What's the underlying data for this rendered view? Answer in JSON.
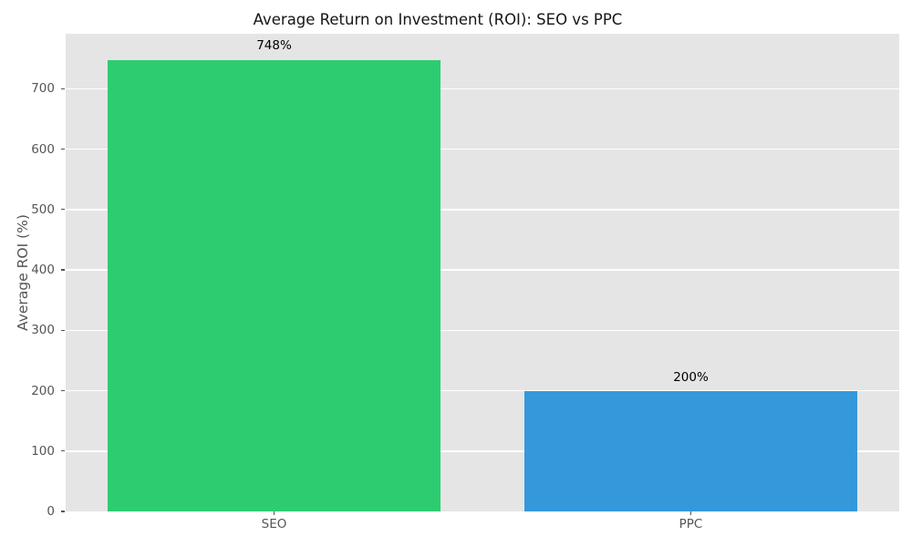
{
  "chart_data": {
    "type": "bar",
    "title": "Average Return on Investment (ROI): SEO vs PPC",
    "xlabel": "",
    "ylabel": "Average ROI (%)",
    "categories": [
      "SEO",
      "PPC"
    ],
    "values": [
      748,
      200
    ],
    "bar_labels": [
      "748%",
      "200%"
    ],
    "bar_colors": [
      "#2ecc71",
      "#3498db"
    ],
    "yticks": [
      0,
      100,
      200,
      300,
      400,
      500,
      600,
      700
    ],
    "ylim": [
      0,
      791
    ],
    "grid": true,
    "legend": "none",
    "plot_bg_color": "#e5e5e5",
    "grid_color": "#ffffff",
    "tick_color": "#555555",
    "value_label_color": "#000000"
  }
}
